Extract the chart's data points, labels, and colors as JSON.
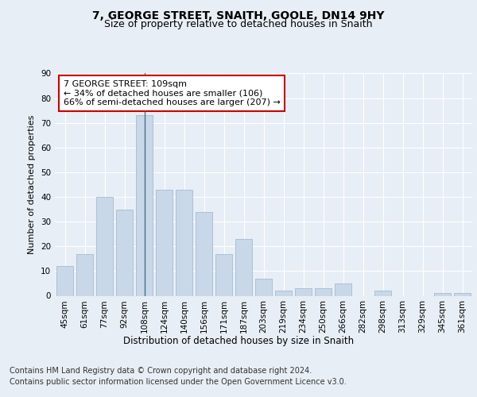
{
  "title": "7, GEORGE STREET, SNAITH, GOOLE, DN14 9HY",
  "subtitle": "Size of property relative to detached houses in Snaith",
  "xlabel": "Distribution of detached houses by size in Snaith",
  "ylabel": "Number of detached properties",
  "footer_line1": "Contains HM Land Registry data © Crown copyright and database right 2024.",
  "footer_line2": "Contains public sector information licensed under the Open Government Licence v3.0.",
  "categories": [
    "45sqm",
    "61sqm",
    "77sqm",
    "92sqm",
    "108sqm",
    "124sqm",
    "140sqm",
    "156sqm",
    "171sqm",
    "187sqm",
    "203sqm",
    "219sqm",
    "234sqm",
    "250sqm",
    "266sqm",
    "282sqm",
    "298sqm",
    "313sqm",
    "329sqm",
    "345sqm",
    "361sqm"
  ],
  "values": [
    12,
    17,
    40,
    35,
    73,
    43,
    43,
    34,
    17,
    23,
    7,
    2,
    3,
    3,
    5,
    0,
    2,
    0,
    0,
    1,
    1
  ],
  "bar_color": "#c8d8e8",
  "bar_edge_color": "#9ab4cc",
  "highlight_bar_index": 4,
  "highlight_line_color": "#4a6f8a",
  "annotation_text": "7 GEORGE STREET: 109sqm\n← 34% of detached houses are smaller (106)\n66% of semi-detached houses are larger (207) →",
  "annotation_box_color": "#ffffff",
  "annotation_box_edge_color": "#cc0000",
  "ylim": [
    0,
    90
  ],
  "yticks": [
    0,
    10,
    20,
    30,
    40,
    50,
    60,
    70,
    80,
    90
  ],
  "background_color": "#e8eef5",
  "axes_background_color": "#e8eef5",
  "grid_color": "#ffffff",
  "title_fontsize": 10,
  "subtitle_fontsize": 9,
  "xlabel_fontsize": 8.5,
  "ylabel_fontsize": 8,
  "tick_fontsize": 7.5,
  "annotation_fontsize": 8,
  "footer_fontsize": 7
}
